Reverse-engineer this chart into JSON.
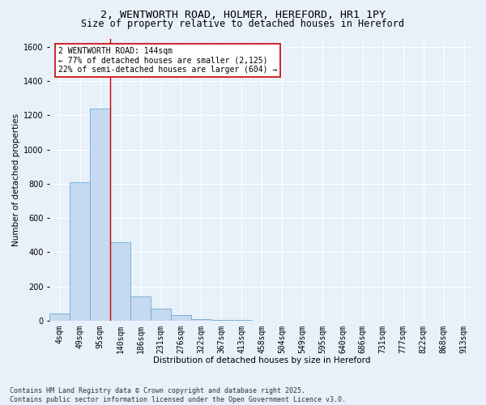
{
  "title": "2, WENTWORTH ROAD, HOLMER, HEREFORD, HR1 1PY",
  "subtitle": "Size of property relative to detached houses in Hereford",
  "xlabel": "Distribution of detached houses by size in Hereford",
  "ylabel": "Number of detached properties",
  "bar_labels": [
    "4sqm",
    "49sqm",
    "95sqm",
    "140sqm",
    "186sqm",
    "231sqm",
    "276sqm",
    "322sqm",
    "367sqm",
    "413sqm",
    "458sqm",
    "504sqm",
    "549sqm",
    "595sqm",
    "640sqm",
    "686sqm",
    "731sqm",
    "777sqm",
    "822sqm",
    "868sqm",
    "913sqm"
  ],
  "bar_values": [
    40,
    810,
    1240,
    460,
    140,
    70,
    30,
    10,
    5,
    2,
    1,
    0,
    0,
    0,
    0,
    0,
    0,
    0,
    0,
    0,
    0
  ],
  "bar_color": "#c5d9f0",
  "bar_edge_color": "#6aaad4",
  "ylim": [
    0,
    1650
  ],
  "yticks": [
    0,
    200,
    400,
    600,
    800,
    1000,
    1200,
    1400,
    1600
  ],
  "property_bin_index": 3,
  "red_line_color": "#cc0000",
  "annotation_text": "2 WENTWORTH ROAD: 144sqm\n← 77% of detached houses are smaller (2,125)\n22% of semi-detached houses are larger (604) →",
  "annotation_box_color": "#cc0000",
  "footer_line1": "Contains HM Land Registry data © Crown copyright and database right 2025.",
  "footer_line2": "Contains public sector information licensed under the Open Government Licence v3.0.",
  "bg_color": "#e8f0fa",
  "grid_color": "#ffffff",
  "title_fontsize": 9.5,
  "subtitle_fontsize": 8.5,
  "axis_label_fontsize": 7.5,
  "tick_fontsize": 7,
  "annotation_fontsize": 7,
  "footer_fontsize": 6
}
